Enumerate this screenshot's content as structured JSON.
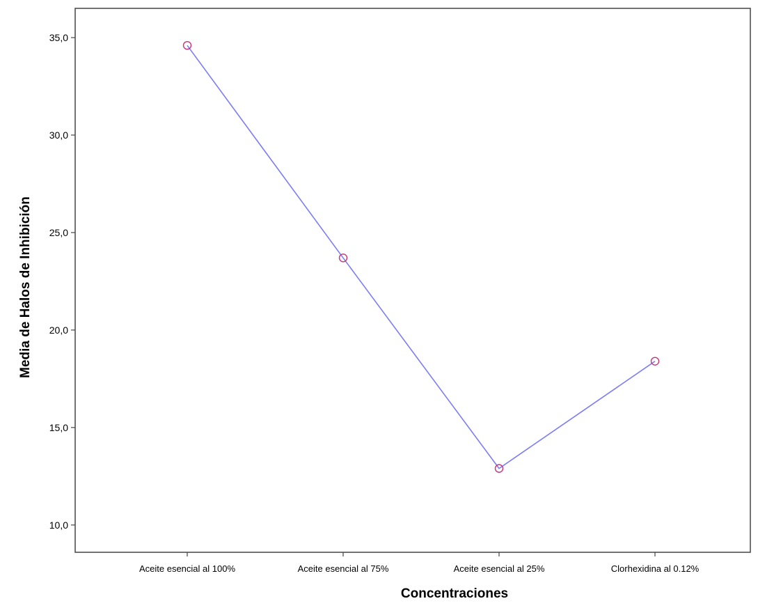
{
  "chart_data": {
    "type": "line",
    "title": "",
    "xlabel": "Concentraciones",
    "ylabel": "Media de Halos de Inhibición",
    "categories": [
      "Aceite esencial al 100%",
      "Aceite esencial al 75%",
      "Aceite esencial al 25%",
      "Clorhexidina al 0.12%"
    ],
    "series": [
      {
        "values": [
          34.6,
          23.7,
          12.9,
          18.4
        ]
      }
    ],
    "ylim": [
      8.6,
      36.5
    ],
    "yticks": [
      10,
      15,
      20,
      25,
      30,
      35
    ],
    "ytick_labels": [
      "10,0",
      "15,0",
      "20,0",
      "25,0",
      "30,0",
      "35,0"
    ],
    "grid": false,
    "legend": "none",
    "colors": {
      "line": "#7c7cf8",
      "marker": "#cc3377",
      "frame": "#444444"
    }
  }
}
